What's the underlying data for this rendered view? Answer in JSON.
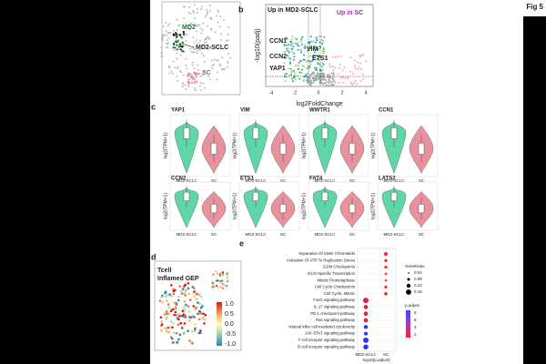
{
  "header": {
    "fig": "Fig 5"
  },
  "panel_a": {
    "labels": [
      "MD2",
      "MD2-SCLC",
      "SC"
    ]
  },
  "panel_b": {
    "label": "b",
    "left": "Up in MD2-SCLC",
    "right": "Up in SC",
    "genes": [
      "CCN1",
      "VIM",
      "CCN2",
      "ETS1",
      "YAP1"
    ],
    "y_label": "-log10(padj)",
    "x_label": "log2FoldChange",
    "x_ticks": [
      "-4",
      "-2",
      "0",
      "2",
      "4"
    ]
  },
  "panel_c": {
    "label": "c",
    "genes": [
      "YAP1",
      "VIM",
      "WWTR1",
      "CCN1",
      "CCN2",
      "ETS1",
      "FAT4",
      "LATS2"
    ],
    "y_label": "log2(TPM+1)",
    "groups": [
      "MD2-SCLC",
      "SC"
    ]
  },
  "panel_d": {
    "label": "d",
    "title": [
      "Tcell",
      "Inflamed GEP"
    ],
    "scale": [
      "1.0",
      "0.5",
      "0.0",
      "-0.5",
      "-1.0"
    ]
  },
  "panel_e": {
    "label": "e",
    "pathways": [
      "Separation Of Sister Chromatids",
      "Activation Of ATR To Replication Stress",
      "G2/M Checkpoints",
      "G1/S-Specific Transcription",
      "Mitotic Prometaphase",
      "Cell Cycle Checkpoints",
      "Cell Cycle, Mitotic",
      "FoxO signaling pathway",
      "IL-17 signaling pathway",
      "PD-1 checkpoint pathway",
      "Ras signaling pathway",
      "Natural killer cell mediated cytotoxicity",
      "JAK-STAT signaling pathway",
      "T cell receptor signaling pathway",
      "B cell receptor signaling pathway"
    ],
    "groups": [
      "MD2-SCLC",
      "SC"
    ],
    "x_label": "-log10(p.adjust)",
    "size_title": "GeneRatio",
    "sizes": [
      "0.04",
      "0.08",
      "0.12",
      "0.16"
    ],
    "color_title": "p.adjust",
    "colors": [
      "8",
      "6",
      "4",
      "2"
    ]
  }
}
